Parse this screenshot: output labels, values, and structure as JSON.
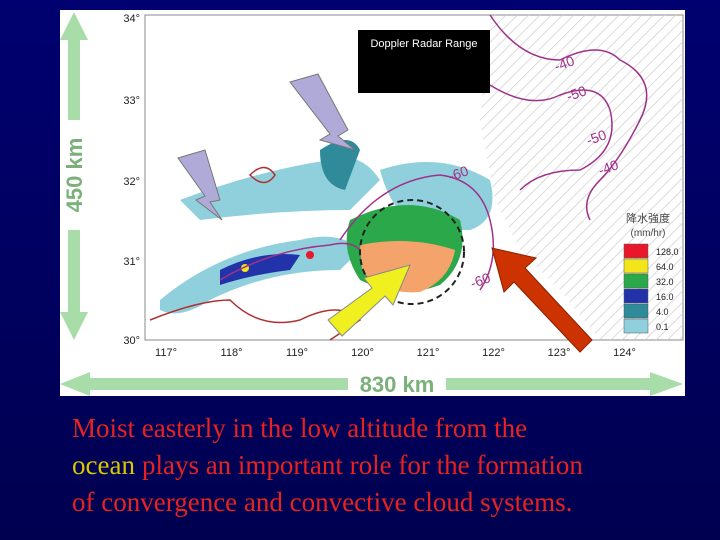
{
  "map": {
    "lat_labels": [
      "34°",
      "33°",
      "32°",
      "31°",
      "30°"
    ],
    "lon_labels": [
      "117°",
      "118°",
      "119°",
      "120°",
      "121°",
      "122°",
      "123°",
      "124°"
    ],
    "height_label": "450 km",
    "width_label": "830 km",
    "radar_box": "Doppler Radar Range",
    "contour_labels": [
      "-40",
      "-50",
      "-50",
      "-40",
      "-60",
      "-60"
    ],
    "legend": {
      "title": "降水強度",
      "unit": "(mm/hr)",
      "items": [
        {
          "label": "128.0",
          "color": "#e8182a"
        },
        {
          "label": "64.0",
          "color": "#f2e51c"
        },
        {
          "label": "32.0",
          "color": "#2aa84a"
        },
        {
          "label": "16.0",
          "color": "#2233aa"
        },
        {
          "label": "4.0",
          "color": "#2f8a9a"
        },
        {
          "label": "0.1",
          "color": "#8fd0dc"
        }
      ]
    }
  },
  "caption": {
    "line1": "Moist easterly in the low altitude from the",
    "highlight": "ocean",
    "line2": "plays an important role for the formation",
    "line3": "of convergence and convective cloud systems."
  }
}
